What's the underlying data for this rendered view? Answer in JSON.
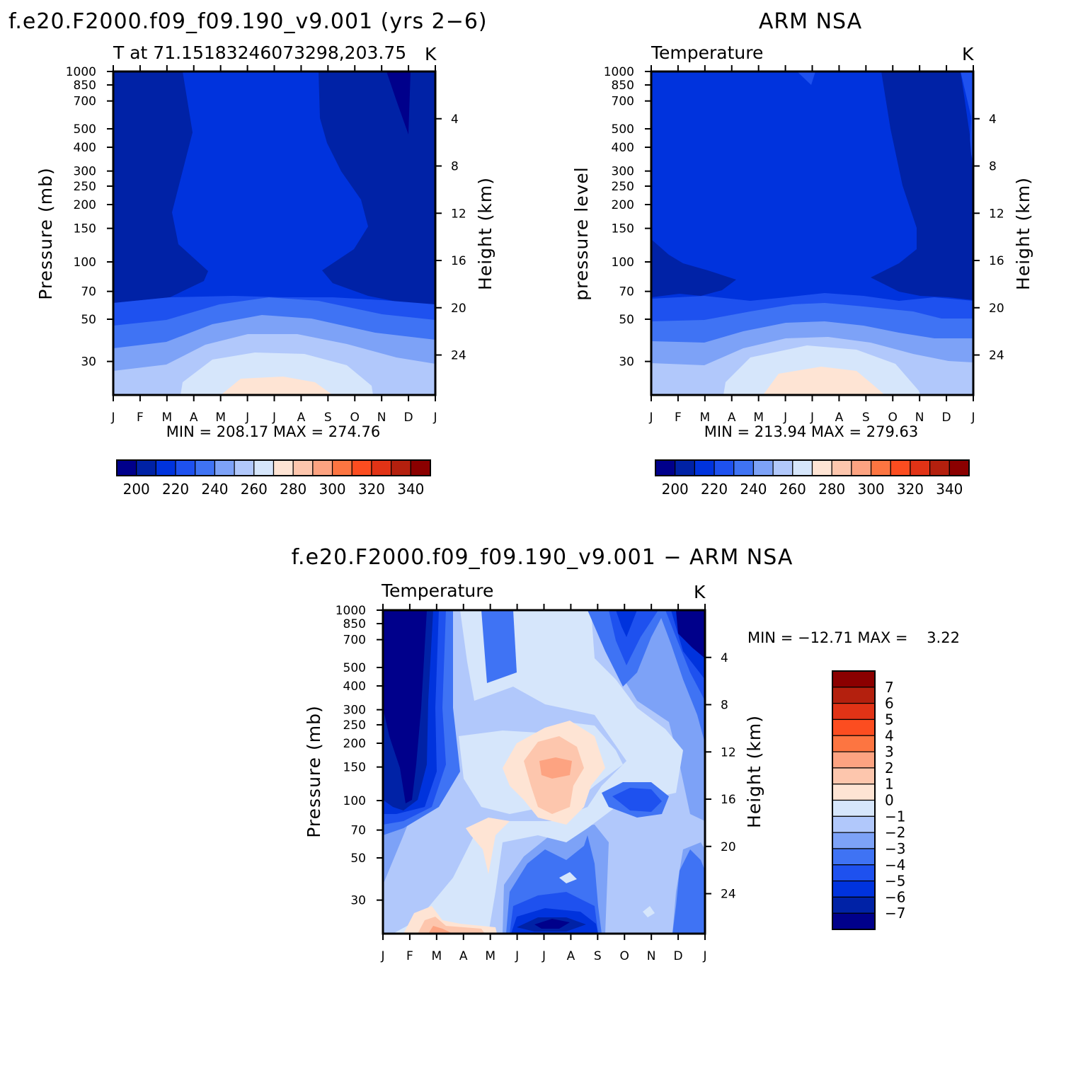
{
  "colors": {
    "m7": "#00008b",
    "m6": "#0022a6",
    "m5": "#0033dd",
    "m4": "#1e51ef",
    "m3": "#3f73f4",
    "m2": "#7da2f7",
    "m1": "#b1c8fb",
    "m0": "#d6e6fb",
    "p0": "#fee4d4",
    "p1": "#fdc6ad",
    "p2": "#fda381",
    "p3": "#fd7541",
    "p4": "#fc4d20",
    "p5": "#e13316",
    "p6": "#b4200e",
    "p7": "#8b0000"
  },
  "chart_data": [
    {
      "type": "contour",
      "id": "model",
      "title": "f.e20.F2000.f09_f09.190_v9.001 (yrs 2−6)",
      "subtitle_left": "T at 71.15183246073298,203.75",
      "subtitle_right": "K",
      "ylabel": "Pressure (mb)",
      "y2label": "Height (km)",
      "x_ticks": [
        "J",
        "F",
        "M",
        "A",
        "M",
        "J",
        "J",
        "A",
        "S",
        "O",
        "N",
        "D",
        "J"
      ],
      "y_ticks": [
        "30",
        "50",
        "70",
        "100",
        "150",
        "200",
        "250",
        "300",
        "400",
        "500",
        "700",
        "850",
        "1000"
      ],
      "y2_ticks": [
        "24",
        "20",
        "16",
        "12",
        "8",
        "4"
      ],
      "ylim": [
        1000,
        20
      ],
      "stats": "MIN = 208.17 MAX = 274.76",
      "min": 208.17,
      "max": 274.76,
      "colorbar_labels": [
        "200",
        "220",
        "240",
        "260",
        "280",
        "300",
        "320",
        "340"
      ],
      "contour_levels": [
        195,
        200,
        205,
        210,
        215,
        220,
        225,
        230,
        235,
        240,
        245,
        250,
        255,
        260,
        265,
        270,
        275,
        280,
        285,
        290,
        295,
        300,
        305,
        310,
        315,
        320,
        325,
        330,
        335,
        340,
        345
      ]
    },
    {
      "type": "contour",
      "id": "obs",
      "title": "ARM NSA",
      "subtitle_left": "Temperature",
      "subtitle_right": "K",
      "ylabel": "pressure level",
      "y2label": "Height (km)",
      "x_ticks": [
        "J",
        "F",
        "M",
        "A",
        "M",
        "J",
        "J",
        "A",
        "S",
        "O",
        "N",
        "D",
        "J"
      ],
      "y_ticks": [
        "30",
        "50",
        "70",
        "100",
        "150",
        "200",
        "250",
        "300",
        "400",
        "500",
        "700",
        "850",
        "1000"
      ],
      "y2_ticks": [
        "24",
        "20",
        "16",
        "12",
        "8",
        "4"
      ],
      "ylim": [
        1000,
        20
      ],
      "stats": "MIN = 213.94 MAX = 279.63",
      "min": 213.94,
      "max": 279.63,
      "colorbar_labels": [
        "200",
        "220",
        "240",
        "260",
        "280",
        "300",
        "320",
        "340"
      ]
    },
    {
      "type": "contour",
      "id": "diff",
      "title": "f.e20.F2000.f09_f09.190_v9.001 − ARM NSA",
      "subtitle_left": "Temperature",
      "subtitle_right": "K",
      "ylabel": "Pressure (mb)",
      "y2label": "Height (km)",
      "x_ticks": [
        "J",
        "F",
        "M",
        "A",
        "M",
        "J",
        "J",
        "A",
        "S",
        "O",
        "N",
        "D",
        "J"
      ],
      "y_ticks": [
        "30",
        "50",
        "70",
        "100",
        "150",
        "200",
        "250",
        "300",
        "400",
        "500",
        "700",
        "850",
        "1000"
      ],
      "y2_ticks": [
        "24",
        "20",
        "16",
        "12",
        "8",
        "4"
      ],
      "ylim": [
        1000,
        20
      ],
      "stats": "MIN = −12.71 MAX =    3.22",
      "min": -12.71,
      "max": 3.22,
      "colorbar_labels": [
        "7",
        "6",
        "5",
        "4",
        "3",
        "2",
        "1",
        "0",
        "−1",
        "−2",
        "−3",
        "−4",
        "−5",
        "−6",
        "−7"
      ],
      "contour_levels": [
        -7,
        -6,
        -5,
        -4,
        -3,
        -2,
        -1,
        0,
        1,
        2,
        3,
        4,
        5,
        6,
        7
      ]
    }
  ]
}
